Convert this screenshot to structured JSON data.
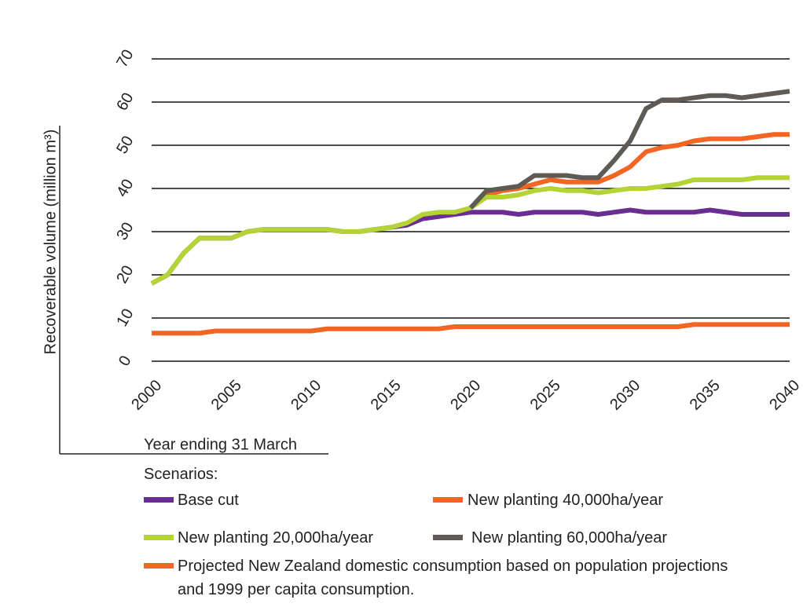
{
  "chart_data": {
    "type": "line",
    "y_label": "Recoverable volume (million m³)",
    "x_label": "Year ending 31 March",
    "legend_title": "Scenarios:",
    "x": [
      2000,
      2001,
      2002,
      2003,
      2004,
      2005,
      2006,
      2007,
      2008,
      2009,
      2010,
      2011,
      2012,
      2013,
      2014,
      2015,
      2016,
      2017,
      2018,
      2019,
      2020,
      2021,
      2022,
      2023,
      2024,
      2025,
      2026,
      2027,
      2028,
      2029,
      2030,
      2031,
      2032,
      2033,
      2034,
      2035,
      2036,
      2037,
      2038,
      2039,
      2040
    ],
    "xlim": [
      2000,
      2040
    ],
    "xticks": [
      2000,
      2005,
      2010,
      2015,
      2020,
      2025,
      2030,
      2035,
      2040
    ],
    "ylim": [
      0,
      70
    ],
    "yticks": [
      0,
      10,
      20,
      30,
      40,
      50,
      60,
      70
    ],
    "grid": true,
    "series": [
      {
        "name": "Base cut",
        "color": "#6a2d91",
        "values": [
          18,
          20,
          25,
          28.5,
          28.5,
          28.5,
          30,
          30.5,
          30.5,
          30.5,
          30.5,
          30.5,
          30,
          30,
          30.5,
          31,
          31.5,
          33,
          33.5,
          34,
          34.5,
          34.5,
          34.5,
          34,
          34.5,
          34.5,
          34.5,
          34.5,
          34,
          34.5,
          35,
          34.5,
          34.5,
          34.5,
          34.5,
          35,
          34.5,
          34,
          34,
          34,
          34
        ]
      },
      {
        "name": "New planting 40,000ha/year",
        "color": "#f26522",
        "values": [
          null,
          null,
          null,
          null,
          null,
          null,
          null,
          null,
          null,
          null,
          null,
          null,
          null,
          null,
          null,
          null,
          null,
          null,
          null,
          null,
          35.5,
          38.5,
          39.5,
          40,
          41,
          42,
          41.5,
          41.5,
          41.5,
          43,
          45,
          48.5,
          49.5,
          50,
          51,
          51.5,
          51.5,
          51.5,
          52,
          52.5,
          52.5
        ]
      },
      {
        "name": "New planting 20,000ha/year",
        "color": "#b5d334",
        "values": [
          18,
          20,
          25,
          28.5,
          28.5,
          28.5,
          30,
          30.5,
          30.5,
          30.5,
          30.5,
          30.5,
          30,
          30,
          30.5,
          31,
          32,
          34,
          34.5,
          34.5,
          35.5,
          38,
          38,
          38.5,
          39.5,
          40,
          39.5,
          39.5,
          39,
          39.5,
          40,
          40,
          40.5,
          41,
          42,
          42,
          42,
          42,
          42.5,
          42.5,
          42.5
        ]
      },
      {
        "name": "New planting 60,000ha/year",
        "color": "#5f5a54",
        "values": [
          null,
          null,
          null,
          null,
          null,
          null,
          null,
          null,
          null,
          null,
          null,
          null,
          null,
          null,
          null,
          null,
          null,
          null,
          null,
          null,
          35.5,
          39.5,
          40,
          40.5,
          43,
          43,
          43,
          42.5,
          42.5,
          46.5,
          51,
          58.5,
          60.5,
          60.5,
          61,
          61.5,
          61.5,
          61,
          61.5,
          62,
          62.5
        ]
      },
      {
        "name": "Projected New Zealand domestic consumption based on population projections and 1999 per capita consumption.",
        "color": "#f26522",
        "values": [
          6.5,
          6.5,
          6.5,
          6.5,
          7,
          7,
          7,
          7,
          7,
          7,
          7,
          7.5,
          7.5,
          7.5,
          7.5,
          7.5,
          7.5,
          7.5,
          7.5,
          8,
          8,
          8,
          8,
          8,
          8,
          8,
          8,
          8,
          8,
          8,
          8,
          8,
          8,
          8,
          8.5,
          8.5,
          8.5,
          8.5,
          8.5,
          8.5,
          8.5
        ]
      }
    ]
  }
}
